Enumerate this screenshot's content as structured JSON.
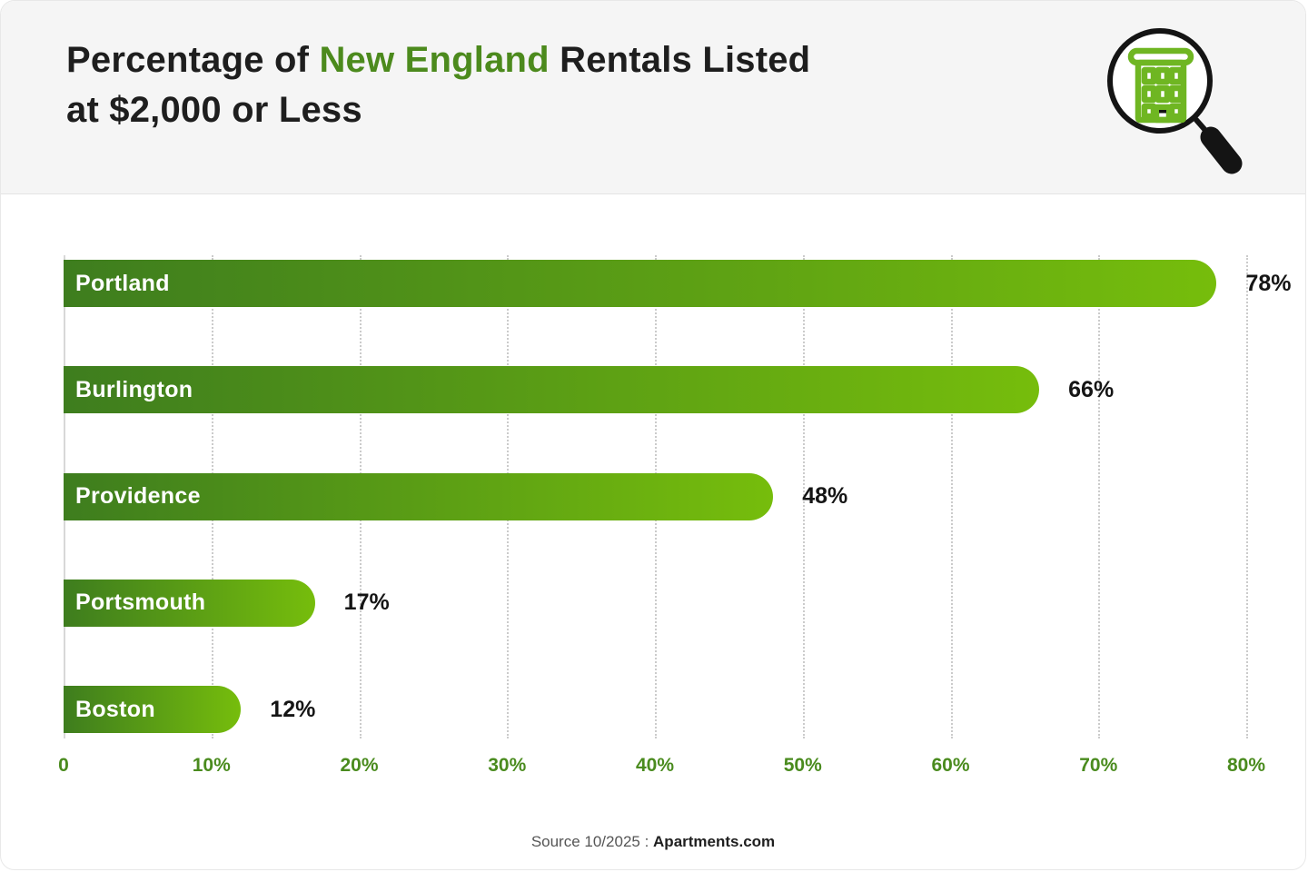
{
  "header": {
    "title_prefix": "Percentage of ",
    "title_accent": "New England",
    "title_suffix": " Rentals Listed",
    "title_line2": "at $2,000 or Less"
  },
  "chart_data": {
    "type": "bar",
    "orientation": "horizontal",
    "title": "Percentage of New England Rentals Listed at $2,000 or Less",
    "categories": [
      "Portland",
      "Burlington",
      "Providence",
      "Portsmouth",
      "Boston"
    ],
    "values": [
      78,
      66,
      48,
      17,
      12
    ],
    "value_labels": [
      "78%",
      "66%",
      "48%",
      "17%",
      "12%"
    ],
    "x_ticks": [
      "0",
      "10%",
      "20%",
      "30%",
      "40%",
      "50%",
      "60%",
      "70%",
      "80%"
    ],
    "xlim": [
      0,
      80
    ],
    "grid": "dotted-vertical",
    "legend": "none"
  },
  "footer": {
    "source_prefix": "Source 10/2025 :",
    "source_name": "Apartments.com"
  },
  "icons": {
    "header_icon": "building-magnifier-icon"
  },
  "colors": {
    "header_bg": "#F5F5F5",
    "accent_green": "#4C8A1D",
    "axis_label_green": "#4A8B1E",
    "bar_gradient_start": "#3E7D1E",
    "bar_gradient_end": "#76BD0C",
    "grid_line": "#CBCBCB",
    "bar_label_text": "#FFFFFF",
    "value_text": "#151515",
    "icon_building_green": "#6FB622",
    "icon_magnifier_black": "#141414"
  }
}
